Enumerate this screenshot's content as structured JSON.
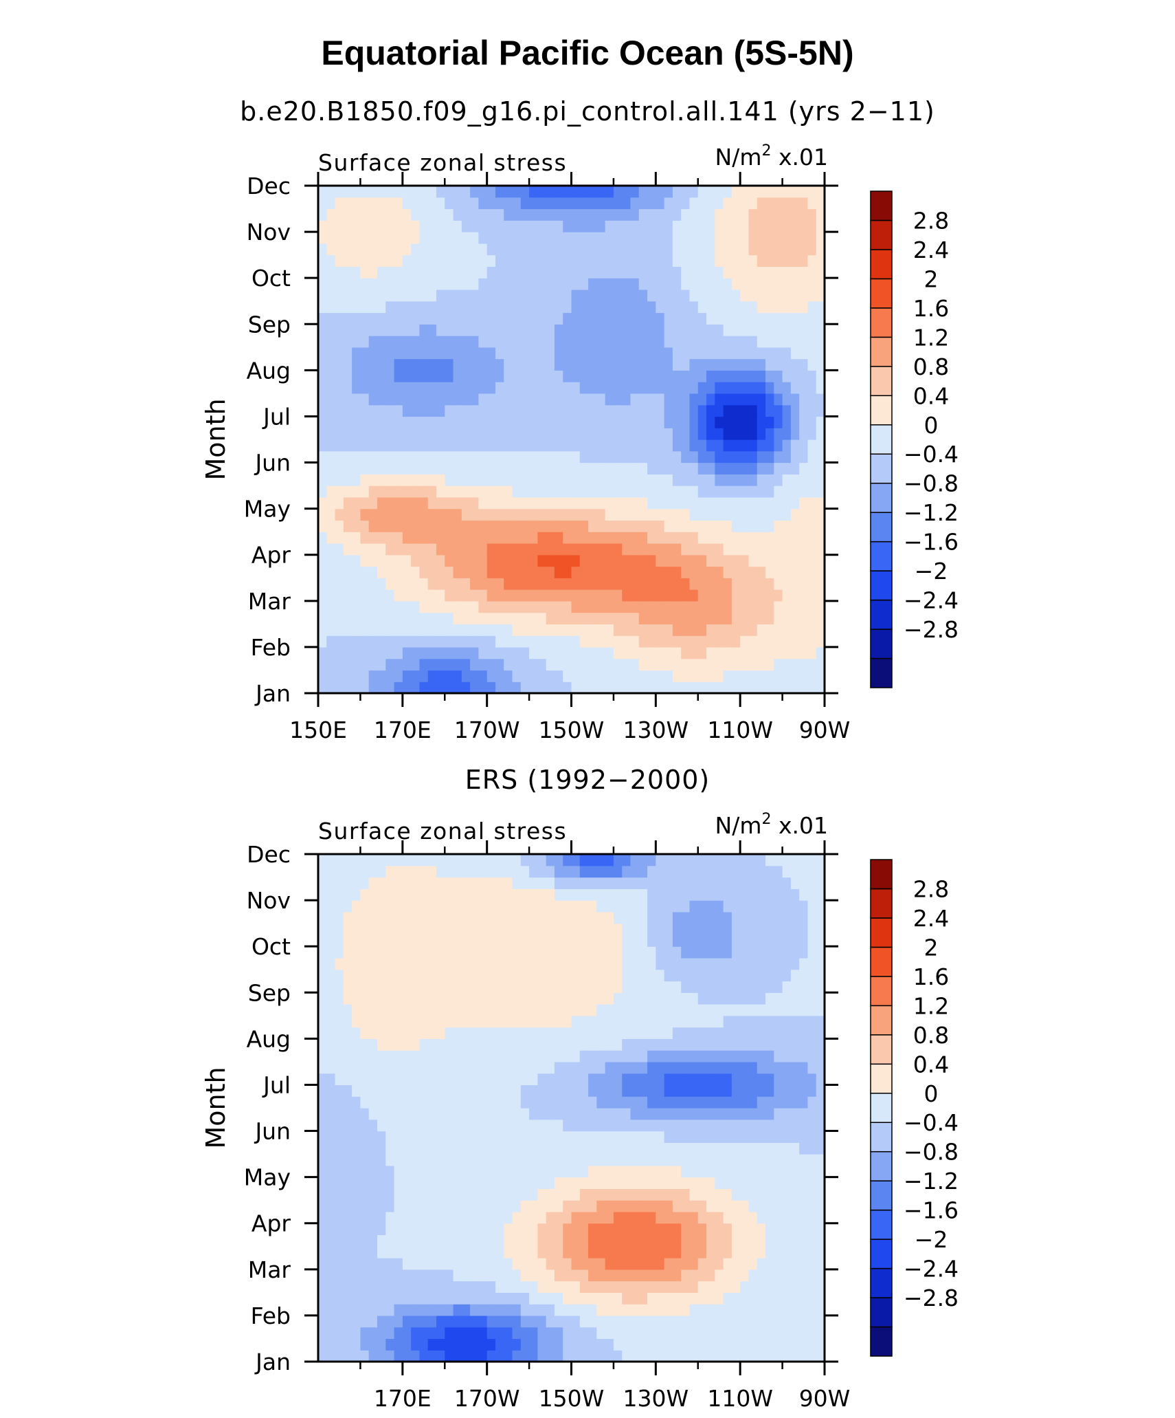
{
  "title": "Equatorial Pacific Ocean (5S-5N)",
  "colorbar": {
    "levels": [
      -3.2,
      -2.8,
      -2.4,
      -2.0,
      -1.6,
      -1.2,
      -0.8,
      -0.4,
      0.0,
      0.4,
      0.8,
      1.2,
      1.6,
      2.0,
      2.4,
      2.8,
      3.2
    ],
    "labels": [
      "2.8",
      "2.4",
      "2",
      "1.6",
      "1.2",
      "0.8",
      "0.4",
      "0",
      "−0.4",
      "−0.8",
      "−1.2",
      "−1.6",
      "−2",
      "−2.4",
      "−2.8"
    ],
    "colors": [
      "#0b0d78",
      "#0a1aa8",
      "#0f2dcf",
      "#1f48ee",
      "#3a66f5",
      "#5b86f2",
      "#86a8f4",
      "#b4caf8",
      "#d8e8fb",
      "#fde8d6",
      "#f9c8ad",
      "#f8a37c",
      "#f67a4d",
      "#ef5326",
      "#df3410",
      "#bd1f08",
      "#880c05"
    ]
  },
  "chart_data": [
    {
      "type": "heatmap",
      "title": "b.e20.B1850.f09_g16.pi_control.all.141 (yrs 2−11)",
      "left_label": "Surface zonal stress",
      "right_label_base": "N/m",
      "right_label_sup": "2",
      "right_label_suffix": " x.01",
      "ylabel": "Month",
      "xlabel": "",
      "x_ticks": [
        150,
        170,
        190,
        210,
        230,
        250,
        270
      ],
      "x_tick_labels": [
        "150E",
        "170E",
        "170W",
        "150W",
        "130W",
        "110W",
        "90W"
      ],
      "y_tick_labels": [
        "Jan",
        "Feb",
        "Mar",
        "Apr",
        "May",
        "Jun",
        "Jul",
        "Aug",
        "Sep",
        "Oct",
        "Nov",
        "Dec"
      ],
      "xlim": [
        150,
        270
      ],
      "ylim": [
        1,
        12
      ],
      "features": [
        {
          "x": 205,
          "y": 3.8,
          "sx": 32,
          "sy": 1.2,
          "amp": 2.0,
          "rot": -0.6
        },
        {
          "x": 168,
          "y": 4.9,
          "sx": 18,
          "sy": 0.7,
          "amp": 1.3,
          "rot": -0.2
        },
        {
          "x": 240,
          "y": 2.8,
          "sx": 20,
          "sy": 1.4,
          "amp": 1.2,
          "rot": -0.5
        },
        {
          "x": 250,
          "y": 6.9,
          "sx": 12,
          "sy": 1.1,
          "amp": -2.4,
          "rot": 0
        },
        {
          "x": 180,
          "y": 1.1,
          "sx": 16,
          "sy": 0.9,
          "amp": -1.4,
          "rot": 0
        },
        {
          "x": 210,
          "y": 12.1,
          "sx": 22,
          "sy": 0.8,
          "amp": -1.6,
          "rot": 0
        },
        {
          "x": 175,
          "y": 8.0,
          "sx": 20,
          "sy": 1.0,
          "amp": -0.9,
          "rot": 0
        },
        {
          "x": 220,
          "y": 8.7,
          "sx": 15,
          "sy": 1.6,
          "amp": -0.8,
          "rot": 0
        },
        {
          "x": 260,
          "y": 11.0,
          "sx": 18,
          "sy": 1.8,
          "amp": 1.0,
          "rot": 0
        },
        {
          "x": 162,
          "y": 11.0,
          "sx": 16,
          "sy": 1.2,
          "amp": 0.7,
          "rot": 0
        },
        {
          "x": 268,
          "y": 4.0,
          "sx": 12,
          "sy": 3.0,
          "amp": 0.5,
          "rot": 0
        }
      ]
    },
    {
      "type": "heatmap",
      "title": "ERS (1992−2000)",
      "left_label": "Surface zonal stress",
      "right_label_base": "N/m",
      "right_label_sup": "2",
      "right_label_suffix": " x.01",
      "ylabel": "Month",
      "xlabel": "",
      "x_ticks": [
        170,
        190,
        210,
        230,
        250,
        270
      ],
      "x_tick_labels": [
        "170E",
        "170W",
        "150W",
        "130W",
        "110W",
        "90W"
      ],
      "y_tick_labels": [
        "Jan",
        "Feb",
        "Mar",
        "Apr",
        "May",
        "Jun",
        "Jul",
        "Aug",
        "Sep",
        "Oct",
        "Nov",
        "Dec"
      ],
      "xlim": [
        150,
        270
      ],
      "ylim": [
        1,
        12
      ],
      "features": [
        {
          "x": 225,
          "y": 3.6,
          "sx": 24,
          "sy": 1.3,
          "amp": 2.0,
          "rot": -0.6
        },
        {
          "x": 200,
          "y": 10.0,
          "sx": 30,
          "sy": 2.2,
          "amp": 0.8,
          "rot": 0
        },
        {
          "x": 165,
          "y": 9.5,
          "sx": 15,
          "sy": 2.8,
          "amp": 0.5,
          "rot": 0
        },
        {
          "x": 240,
          "y": 7.0,
          "sx": 26,
          "sy": 0.7,
          "amp": -1.4,
          "rot": 0
        },
        {
          "x": 185,
          "y": 1.4,
          "sx": 20,
          "sy": 0.8,
          "amp": -1.9,
          "rot": 0
        },
        {
          "x": 215,
          "y": 11.9,
          "sx": 14,
          "sy": 0.6,
          "amp": -1.6,
          "rot": 0
        },
        {
          "x": 240,
          "y": 10.3,
          "sx": 12,
          "sy": 1.0,
          "amp": -0.8,
          "rot": 0
        },
        {
          "x": 155,
          "y": 6.0,
          "sx": 10,
          "sy": 1.5,
          "amp": -0.3,
          "rot": 0
        }
      ]
    }
  ]
}
